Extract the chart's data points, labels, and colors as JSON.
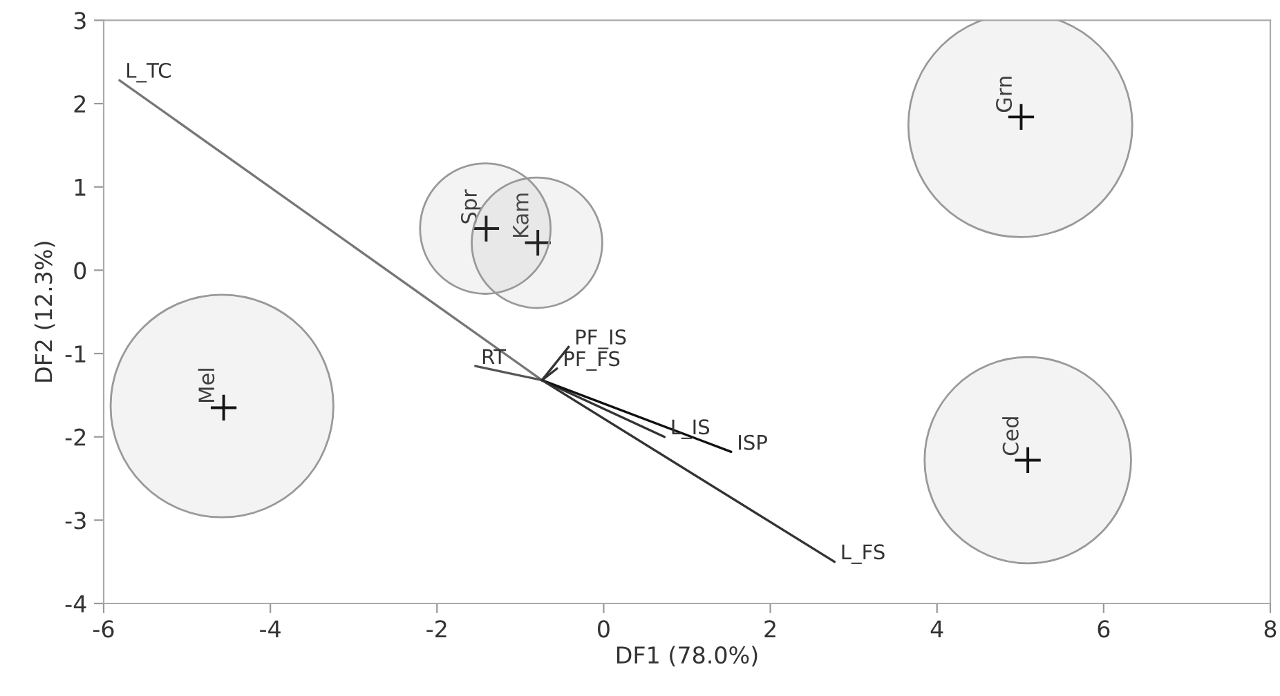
{
  "chart_data": {
    "type": "scatter",
    "xlabel": "DF1 (78.0%)",
    "ylabel": "DF2 (12.3%)",
    "xlim": [
      -6,
      8
    ],
    "ylim": [
      -4,
      3
    ],
    "xticks": [
      -6,
      -4,
      -2,
      0,
      2,
      4,
      6,
      8
    ],
    "yticks": [
      -4,
      -3,
      -2,
      -1,
      0,
      1,
      2,
      3
    ],
    "grid": false,
    "legend": false,
    "series": [
      {
        "type": "bubble",
        "color": "#999999",
        "x": [
          5.0,
          5.09,
          -4.58,
          -1.42,
          -0.8
        ],
        "values": [
          1.74,
          -2.28,
          -1.63,
          0.5,
          0.33
        ],
        "sizes": [
          1,
          0.85,
          0.99,
          0.34,
          0.34
        ]
      },
      {
        "marker": "cross",
        "color": "#000000",
        "x": [
          5.01,
          5.09,
          -4.56,
          -1.41,
          -0.79
        ],
        "values": [
          1.84,
          -2.28,
          -1.65,
          0.5,
          0.33
        ]
      },
      {
        "type": "line",
        "name": "L_TC",
        "color": "#777777",
        "x": [
          -0.74,
          -5.81
        ],
        "values": [
          -1.32,
          2.28
        ]
      },
      {
        "type": "line",
        "name": "RT",
        "color": "#555555",
        "x": [
          -0.74,
          -1.54
        ],
        "values": [
          -1.32,
          -1.15
        ]
      },
      {
        "type": "line",
        "name": "PF_IS",
        "color": "#333333",
        "x": [
          -0.74,
          -0.42
        ],
        "values": [
          -1.32,
          -0.92
        ]
      },
      {
        "type": "line",
        "name": "PF_FS",
        "color": "#333333",
        "x": [
          -0.74,
          -0.56
        ],
        "values": [
          -1.32,
          -1.18
        ]
      },
      {
        "type": "line",
        "name": "L_IS",
        "color": "#333333",
        "x": [
          -0.74,
          0.73
        ],
        "values": [
          -1.32,
          -2.0
        ]
      },
      {
        "type": "line",
        "name": "ISP",
        "color": "#111111",
        "x": [
          -0.74,
          1.53
        ],
        "values": [
          -1.32,
          -2.18
        ]
      },
      {
        "type": "line",
        "name": "L_FS",
        "color": "#333333",
        "x": [
          -0.74,
          2.77
        ],
        "values": [
          -1.32,
          -3.5
        ]
      }
    ],
    "annotations": [
      {
        "text": "Grn",
        "x": 5.01,
        "y": 1.84
      },
      {
        "text": "Ced",
        "x": 5.09,
        "y": -2.28
      },
      {
        "text": "Mel",
        "x": -4.56,
        "y": -1.65
      },
      {
        "text": "Spr",
        "x": -1.41,
        "y": 0.5
      },
      {
        "text": "Kam",
        "x": -0.79,
        "y": 0.33
      }
    ]
  }
}
